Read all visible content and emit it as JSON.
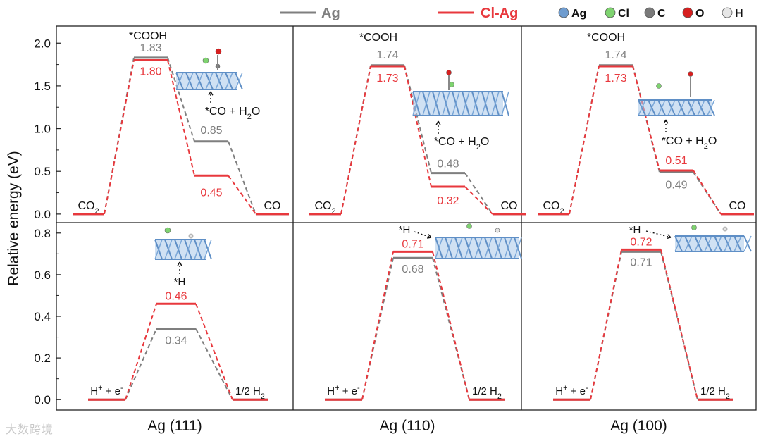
{
  "legend": {
    "series": [
      {
        "label": "Ag",
        "color": "#7f7f7f"
      },
      {
        "label": "Cl-Ag",
        "color": "#e8383d"
      }
    ],
    "atoms": [
      {
        "label": "Ag",
        "color": "#6f9ccf"
      },
      {
        "label": "Cl",
        "color": "#7ed36f"
      },
      {
        "label": "C",
        "color": "#7a7a7a"
      },
      {
        "label": "O",
        "color": "#d61f1f"
      },
      {
        "label": "H",
        "color": "#e6e6e6"
      }
    ]
  },
  "ylabel": "Relative energy (eV)",
  "watermark": "大数跨境",
  "chart_data": [
    {
      "type": "line",
      "facet": "Ag (111)",
      "row": "top",
      "ylim": [
        -0.1,
        2.2
      ],
      "yticks": [
        0.0,
        0.5,
        1.0,
        1.5,
        2.0
      ],
      "steps": [
        "CO2",
        "*COOH",
        "*CO + H2O",
        "CO"
      ],
      "series": [
        {
          "name": "Ag",
          "values": [
            0,
            1.83,
            0.85,
            0
          ]
        },
        {
          "name": "Cl-Ag",
          "values": [
            0,
            1.8,
            0.45,
            0
          ]
        }
      ]
    },
    {
      "type": "line",
      "facet": "Ag (110)",
      "row": "top",
      "ylim": [
        -0.1,
        2.2
      ],
      "steps": [
        "CO2",
        "*COOH",
        "*CO + H2O",
        "CO"
      ],
      "series": [
        {
          "name": "Ag",
          "values": [
            0,
            1.74,
            0.48,
            0
          ]
        },
        {
          "name": "Cl-Ag",
          "values": [
            0,
            1.73,
            0.32,
            0
          ]
        }
      ]
    },
    {
      "type": "line",
      "facet": "Ag (100)",
      "row": "top",
      "ylim": [
        -0.1,
        2.2
      ],
      "steps": [
        "CO2",
        "*COOH",
        "*CO + H2O",
        "CO"
      ],
      "series": [
        {
          "name": "Ag",
          "values": [
            0,
            1.74,
            0.49,
            0
          ]
        },
        {
          "name": "Cl-Ag",
          "values": [
            0,
            1.73,
            0.51,
            0
          ]
        }
      ]
    },
    {
      "type": "line",
      "facet": "Ag (111)",
      "row": "bottom",
      "ylim": [
        -0.05,
        0.85
      ],
      "yticks": [
        0.0,
        0.2,
        0.4,
        0.6,
        0.8
      ],
      "steps": [
        "H+ + e-",
        "*H",
        "1/2 H2"
      ],
      "series": [
        {
          "name": "Ag",
          "values": [
            0,
            0.34,
            0
          ]
        },
        {
          "name": "Cl-Ag",
          "values": [
            0,
            0.46,
            0
          ]
        }
      ]
    },
    {
      "type": "line",
      "facet": "Ag (110)",
      "row": "bottom",
      "ylim": [
        -0.05,
        0.85
      ],
      "steps": [
        "H+ + e-",
        "*H",
        "1/2 H2"
      ],
      "series": [
        {
          "name": "Ag",
          "values": [
            0,
            0.68,
            0
          ]
        },
        {
          "name": "Cl-Ag",
          "values": [
            0,
            0.71,
            0
          ]
        }
      ]
    },
    {
      "type": "line",
      "facet": "Ag (100)",
      "row": "bottom",
      "ylim": [
        -0.05,
        0.85
      ],
      "steps": [
        "H+ + e-",
        "*H",
        "1/2 H2"
      ],
      "series": [
        {
          "name": "Ag",
          "values": [
            0,
            0.71,
            0
          ]
        },
        {
          "name": "Cl-Ag",
          "values": [
            0,
            0.72,
            0
          ]
        }
      ]
    }
  ]
}
